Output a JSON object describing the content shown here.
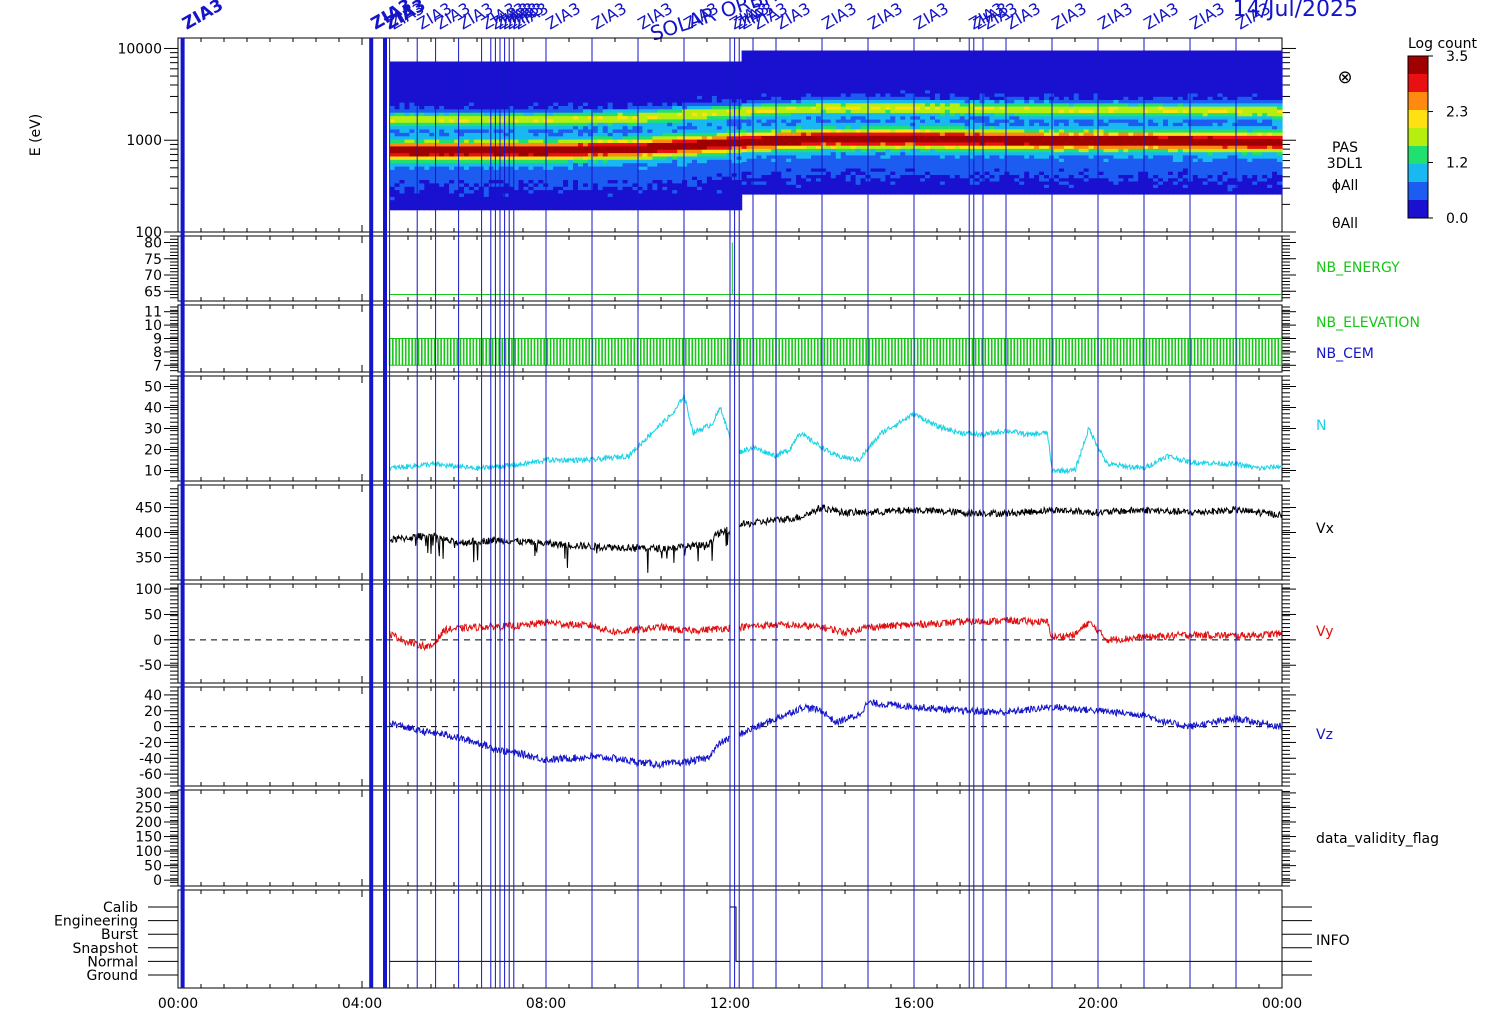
{
  "header": {
    "title": "SOLAR ORBITER",
    "date": "14/Jul/2025"
  },
  "colors": {
    "event_line": "#1414c8",
    "nb_energy": "#17c617",
    "nb_elevation": "#17c617",
    "nb_cem": "#1414c8",
    "density": "#19d2e6",
    "vx": "#000000",
    "vy": "#e01010",
    "vz": "#1414c8",
    "info": "#000000"
  },
  "event_markers": {
    "label": "ZIA3",
    "times_h": [
      0.1,
      4.2,
      4.5,
      4.6,
      5.2,
      5.6,
      6.1,
      6.6,
      6.8,
      6.9,
      7.0,
      7.1,
      7.2,
      7.3,
      8.0,
      9.0,
      10.0,
      11.0,
      12.0,
      12.1,
      12.2,
      12.5,
      13.0,
      14.0,
      15.0,
      16.0,
      17.2,
      17.3,
      17.5,
      18.0,
      19.0,
      20.0,
      21.0,
      22.0,
      23.0
    ],
    "thick_times_h": [
      0.1,
      4.2,
      4.5
    ]
  },
  "chart_data": {
    "type": "line",
    "xlabel": "",
    "x_range_h": [
      0,
      24
    ],
    "x_ticks": [
      "00:00",
      "04:00",
      "08:00",
      "12:00",
      "16:00",
      "20:00",
      "00:00"
    ],
    "data_start_h": 4.6,
    "data_end_h": 24,
    "panels": [
      {
        "id": "spectrogram",
        "type": "heatmap",
        "ylabel": "E (eV)",
        "y_scale": "log",
        "ylim": [
          100,
          13000
        ],
        "y_ticks": [
          "100",
          "1000",
          "10000"
        ],
        "right_labels": [
          "PAS",
          "3DL1",
          "ϕAll",
          "θAll"
        ],
        "colorbar": {
          "title": "Log count",
          "range": [
            0.0,
            3.5
          ],
          "ticks": [
            "0.0",
            "1.2",
            "2.3",
            "3.5"
          ]
        },
        "peak_energy_ev": [
          {
            "t": 4.6,
            "e": 780
          },
          {
            "t": 8.0,
            "e": 780
          },
          {
            "t": 10.0,
            "e": 820
          },
          {
            "t": 12.0,
            "e": 950
          },
          {
            "t": 14.0,
            "e": 1050
          },
          {
            "t": 16.0,
            "e": 1050
          },
          {
            "t": 19.0,
            "e": 1000
          },
          {
            "t": 21.0,
            "e": 1000
          },
          {
            "t": 24.0,
            "e": 960
          }
        ]
      },
      {
        "id": "nb_energy",
        "right_label": "NB_ENERGY",
        "ylim": [
          62,
          82
        ],
        "y_ticks": [
          "65",
          "70",
          "75",
          "80"
        ],
        "series": [
          {
            "name": "NB_ENERGY",
            "value": 64
          }
        ]
      },
      {
        "id": "nb_elevation",
        "right_labels": [
          "NB_ELEVATION",
          "NB_CEM"
        ],
        "ylim": [
          6.5,
          11.5
        ],
        "y_ticks": [
          "7",
          "8",
          "9",
          "10",
          "11"
        ],
        "series": [
          {
            "name": "NB_ELEVATION",
            "band": [
              7,
              9
            ]
          }
        ]
      },
      {
        "id": "density",
        "right_label": "N",
        "ylim": [
          5,
          55
        ],
        "y_ticks": [
          "10",
          "20",
          "30",
          "40",
          "50"
        ],
        "series": [
          {
            "name": "N",
            "points": [
              [
                4.6,
                11
              ],
              [
                5.5,
                13
              ],
              [
                6.5,
                11
              ],
              [
                7.5,
                13
              ],
              [
                8.0,
                15
              ],
              [
                9.0,
                15
              ],
              [
                9.8,
                17
              ],
              [
                10.3,
                28
              ],
              [
                10.8,
                38
              ],
              [
                11.0,
                46
              ],
              [
                11.2,
                28
              ],
              [
                11.6,
                32
              ],
              [
                11.8,
                40
              ],
              [
                12.1,
                18
              ],
              [
                12.5,
                21
              ],
              [
                13.0,
                17
              ],
              [
                13.3,
                20
              ],
              [
                13.5,
                28
              ],
              [
                14.0,
                21
              ],
              [
                14.3,
                17
              ],
              [
                14.8,
                15
              ],
              [
                15.3,
                28
              ],
              [
                16.0,
                37
              ],
              [
                16.5,
                31
              ],
              [
                17.0,
                28
              ],
              [
                17.5,
                27
              ],
              [
                18.0,
                29
              ],
              [
                18.5,
                27
              ],
              [
                18.9,
                28
              ],
              [
                19.0,
                10
              ],
              [
                19.5,
                10
              ],
              [
                19.8,
                30
              ],
              [
                20.2,
                13
              ],
              [
                21.0,
                11
              ],
              [
                21.5,
                17
              ],
              [
                22.0,
                14
              ],
              [
                23.0,
                13
              ],
              [
                23.5,
                11
              ],
              [
                24.0,
                12
              ]
            ]
          }
        ]
      },
      {
        "id": "vx",
        "right_label": "Vx",
        "ylim": [
          305,
          495
        ],
        "y_ticks": [
          "350",
          "400",
          "450"
        ],
        "series": [
          {
            "name": "Vx",
            "points": [
              [
                4.6,
                385
              ],
              [
                5.5,
                395
              ],
              [
                6.0,
                380
              ],
              [
                7.0,
                385
              ],
              [
                8.0,
                378
              ],
              [
                9.0,
                372
              ],
              [
                10.0,
                370
              ],
              [
                10.5,
                368
              ],
              [
                11.5,
                375
              ],
              [
                11.7,
                395
              ],
              [
                12.2,
                415
              ],
              [
                13.0,
                425
              ],
              [
                13.5,
                430
              ],
              [
                14.0,
                450
              ],
              [
                14.5,
                440
              ],
              [
                15.0,
                440
              ],
              [
                16.0,
                445
              ],
              [
                17.0,
                440
              ],
              [
                18.0,
                438
              ],
              [
                19.0,
                445
              ],
              [
                20.0,
                440
              ],
              [
                21.0,
                445
              ],
              [
                22.0,
                440
              ],
              [
                23.0,
                445
              ],
              [
                24.0,
                435
              ]
            ]
          }
        ]
      },
      {
        "id": "vy",
        "right_label": "Vy",
        "ylim": [
          -85,
          110
        ],
        "y_ticks": [
          "-50",
          "0",
          "50",
          "100"
        ],
        "zero_line": true,
        "series": [
          {
            "name": "Vy",
            "points": [
              [
                4.6,
                12
              ],
              [
                5.0,
                -5
              ],
              [
                5.5,
                -15
              ],
              [
                5.8,
                20
              ],
              [
                6.5,
                25
              ],
              [
                7.5,
                28
              ],
              [
                8.0,
                35
              ],
              [
                8.5,
                30
              ],
              [
                9.0,
                28
              ],
              [
                9.5,
                15
              ],
              [
                10.0,
                20
              ],
              [
                10.5,
                25
              ],
              [
                11.0,
                18
              ],
              [
                11.5,
                20
              ],
              [
                12.2,
                25
              ],
              [
                13.0,
                30
              ],
              [
                14.0,
                25
              ],
              [
                14.5,
                15
              ],
              [
                15.0,
                25
              ],
              [
                16.0,
                30
              ],
              [
                17.0,
                35
              ],
              [
                18.0,
                38
              ],
              [
                18.9,
                35
              ],
              [
                19.0,
                5
              ],
              [
                19.5,
                10
              ],
              [
                19.8,
                35
              ],
              [
                20.2,
                0
              ],
              [
                21.0,
                5
              ],
              [
                22.0,
                10
              ],
              [
                23.0,
                8
              ],
              [
                24.0,
                12
              ]
            ]
          }
        ]
      },
      {
        "id": "vz",
        "right_label": "Vz",
        "ylim": [
          -75,
          50
        ],
        "y_ticks": [
          "-60",
          "-40",
          "-20",
          "0",
          "20",
          "40"
        ],
        "zero_line": true,
        "series": [
          {
            "name": "Vz",
            "points": [
              [
                4.6,
                5
              ],
              [
                5.2,
                -5
              ],
              [
                5.8,
                -10
              ],
              [
                6.5,
                -20
              ],
              [
                7.0,
                -30
              ],
              [
                7.5,
                -35
              ],
              [
                8.0,
                -42
              ],
              [
                8.5,
                -40
              ],
              [
                9.0,
                -38
              ],
              [
                9.5,
                -40
              ],
              [
                10.0,
                -45
              ],
              [
                10.5,
                -48
              ],
              [
                11.0,
                -45
              ],
              [
                11.5,
                -40
              ],
              [
                11.8,
                -20
              ],
              [
                12.2,
                -10
              ],
              [
                12.8,
                5
              ],
              [
                13.2,
                15
              ],
              [
                13.6,
                25
              ],
              [
                14.0,
                20
              ],
              [
                14.3,
                5
              ],
              [
                14.8,
                15
              ],
              [
                15.0,
                30
              ],
              [
                16.0,
                25
              ],
              [
                17.0,
                20
              ],
              [
                18.0,
                18
              ],
              [
                19.0,
                25
              ],
              [
                20.0,
                20
              ],
              [
                21.0,
                15
              ],
              [
                21.5,
                5
              ],
              [
                22.0,
                0
              ],
              [
                23.0,
                10
              ],
              [
                24.0,
                0
              ]
            ]
          }
        ]
      },
      {
        "id": "data_validity_flag",
        "right_label": "data_validity_flag",
        "ylim": [
          -20,
          310
        ],
        "y_ticks": [
          "0",
          "50",
          "100",
          "150",
          "200",
          "250",
          "300"
        ]
      },
      {
        "id": "info",
        "right_label": "INFO",
        "categories": [
          "Calib",
          "Engineering",
          "Burst",
          "Snapshot",
          "Normal",
          "Ground"
        ],
        "series": [
          {
            "name": "INFO",
            "level": "Normal",
            "jump_h": 12.0,
            "jump_level": "Calib"
          }
        ]
      }
    ]
  }
}
